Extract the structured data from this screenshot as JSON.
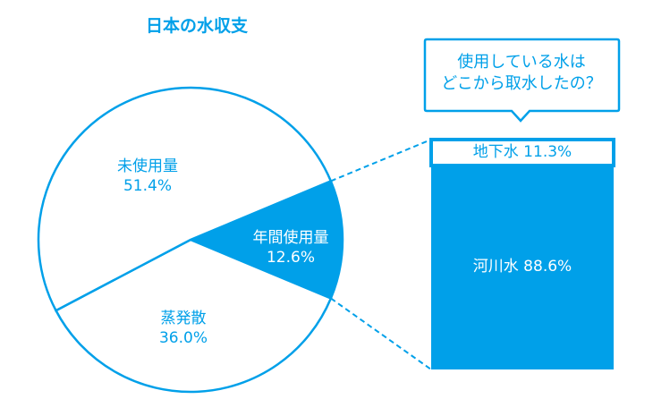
{
  "colors": {
    "accent": "#00a0e9",
    "white": "#ffffff"
  },
  "chart_data": [
    {
      "type": "pie",
      "title": "日本の水収支",
      "slices": [
        {
          "label": "年間使用量",
          "value": 12.6,
          "value_text": "12.6%",
          "highlight": true
        },
        {
          "label": "蒸発散",
          "value": 36.0,
          "value_text": "36.0%"
        },
        {
          "label": "未使用量",
          "value": 51.4,
          "value_text": "51.4%"
        }
      ]
    },
    {
      "type": "bar",
      "stacked": true,
      "callout": [
        "使用している水は",
        "どこから取水したの？"
      ],
      "segments": [
        {
          "label": "地下水 11.3%",
          "name": "地下水",
          "value": 11.3
        },
        {
          "label": "河川水 88.6%",
          "name": "河川水",
          "value": 88.6
        }
      ]
    }
  ]
}
